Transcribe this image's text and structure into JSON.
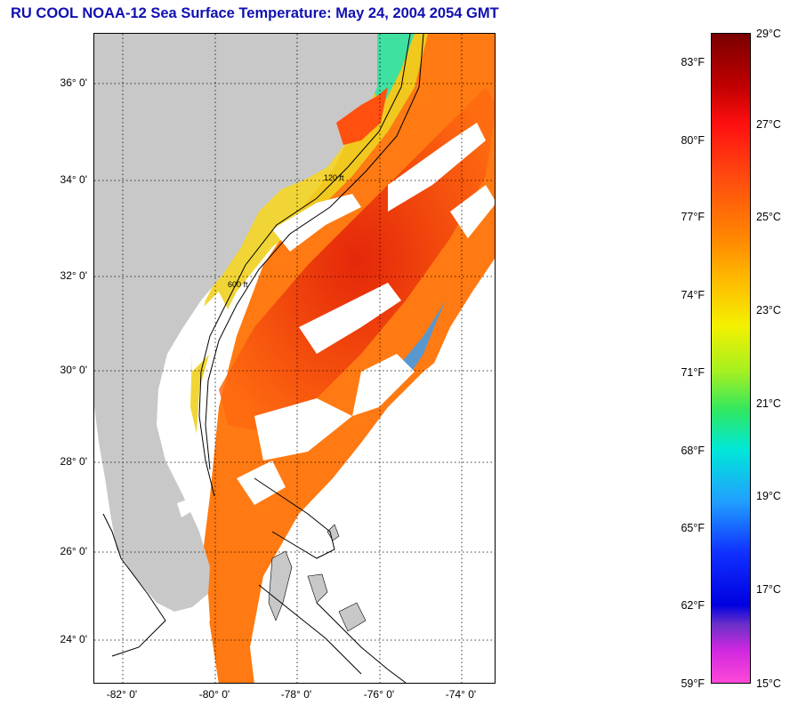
{
  "title": "RU COOL  NOAA-12  Sea Surface Temperature:  May 24, 2004 2054 GMT",
  "map": {
    "lat_labels": [
      "36° 0'",
      "34° 0'",
      "32° 0'",
      "30° 0'",
      "28° 0'",
      "26° 0'",
      "24° 0'"
    ],
    "lon_labels": [
      "-82° 0'",
      "-80° 0'",
      "-78° 0'",
      "-76° 0'",
      "-74° 0'"
    ],
    "isobath_labels": [
      "120 ft",
      "600 ft"
    ],
    "colors": {
      "land": "#c8c8c8",
      "warm": "#ff5a10",
      "core": "#e81a0a",
      "mid": "#ffa018",
      "cool": "#f0e020",
      "cold": "#30d8a0",
      "cloud": "#ffffff"
    }
  },
  "colorbar": {
    "fahrenheit_labels": [
      "83°F",
      "80°F",
      "77°F",
      "74°F",
      "71°F",
      "68°F",
      "65°F",
      "62°F",
      "59°F"
    ],
    "celsius_labels": [
      "29°C",
      "27°C",
      "25°C",
      "23°C",
      "21°C",
      "19°C",
      "17°C",
      "15°C"
    ],
    "range_f": [
      59,
      85
    ],
    "range_c": [
      15,
      29
    ]
  }
}
